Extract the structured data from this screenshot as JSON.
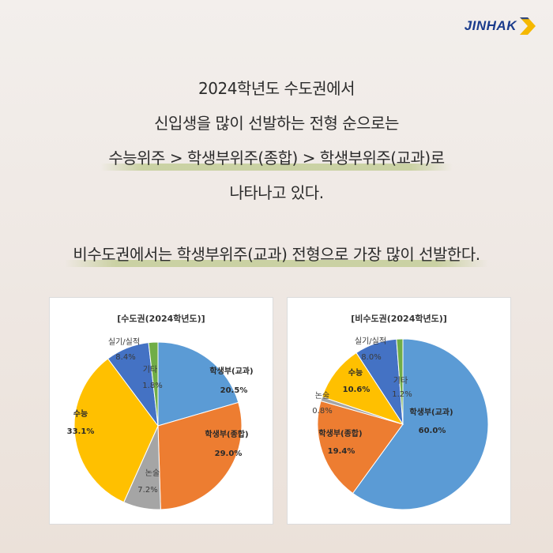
{
  "brand": {
    "name": "JINHAK"
  },
  "headline": {
    "line1": "2024학년도 수도권에서",
    "line2": "신입생을 많이 선발하는 전형 순으로는",
    "line3": "수능위주 > 학생부위주(종합) > 학생부위주(교과)로",
    "line4": "나타나고 있다.",
    "line5": "비수도권에서는 학생부위주(교과) 전형으로 가장 많이 선발한다."
  },
  "chart_data": [
    {
      "type": "pie",
      "title": "[수도권(2024학년도)]",
      "slices": [
        {
          "label": "학생부(교과)",
          "value": 20.5,
          "display": "20.5%",
          "color": "#5b9bd5"
        },
        {
          "label": "학생부(종합)",
          "value": 29.0,
          "display": "29.0%",
          "color": "#ed7d31"
        },
        {
          "label": "논술",
          "value": 7.2,
          "display": "7.2%",
          "color": "#a5a5a5"
        },
        {
          "label": "수능",
          "value": 33.1,
          "display": "33.1%",
          "color": "#ffc000"
        },
        {
          "label": "실기/실적",
          "value": 8.4,
          "display": "8.4%",
          "color": "#4472c4"
        },
        {
          "label": "기타",
          "value": 1.8,
          "display": "1.8%",
          "color": "#70ad47"
        }
      ]
    },
    {
      "type": "pie",
      "title": "[비수도권(2024학년도)]",
      "slices": [
        {
          "label": "학생부(교과)",
          "value": 60.0,
          "display": "60.0%",
          "color": "#5b9bd5"
        },
        {
          "label": "학생부(종합)",
          "value": 19.4,
          "display": "19.4%",
          "color": "#ed7d31"
        },
        {
          "label": "논술",
          "value": 0.8,
          "display": "0.8%",
          "color": "#a5a5a5"
        },
        {
          "label": "수능",
          "value": 10.6,
          "display": "10.6%",
          "color": "#ffc000"
        },
        {
          "label": "실기/실적",
          "value": 8.0,
          "display": "8.0%",
          "color": "#4472c4"
        },
        {
          "label": "기타",
          "value": 1.2,
          "display": "1.2%",
          "color": "#70ad47"
        }
      ]
    }
  ]
}
